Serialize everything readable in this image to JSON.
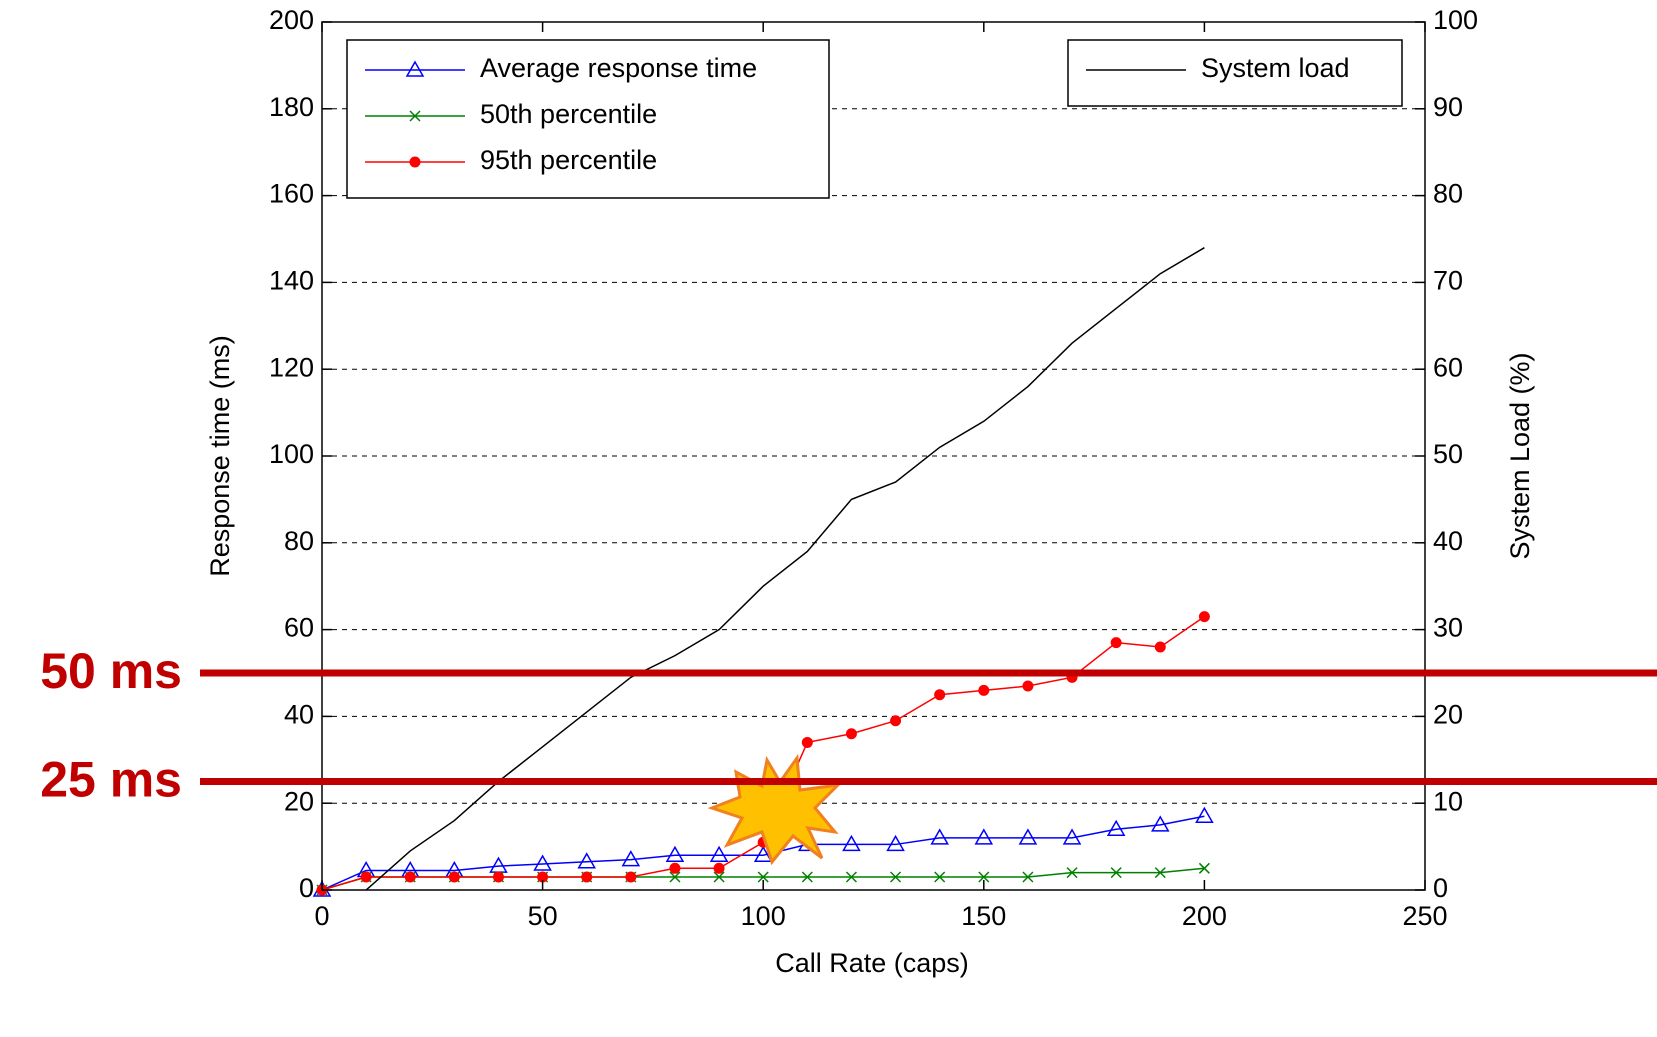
{
  "chart_data": {
    "type": "line",
    "x": [
      0,
      10,
      20,
      30,
      40,
      50,
      60,
      70,
      80,
      90,
      100,
      110,
      120,
      130,
      140,
      150,
      160,
      170,
      180,
      190,
      200
    ],
    "series": [
      {
        "name": "Average response time",
        "color": "#0000ff",
        "marker": "triangle",
        "values": [
          0,
          4.5,
          4.5,
          4.5,
          5.5,
          6,
          6.5,
          7,
          8,
          8,
          8,
          10.5,
          10.5,
          10.5,
          12,
          12,
          12,
          12,
          14,
          15,
          17
        ]
      },
      {
        "name": "50th percentile",
        "color": "#008000",
        "marker": "x",
        "values": [
          0,
          3,
          3,
          3,
          3,
          3,
          3,
          3,
          3,
          3,
          3,
          3,
          3,
          3,
          3,
          3,
          3,
          4,
          4,
          4,
          5
        ]
      },
      {
        "name": "95th percentile",
        "color": "#ff0000",
        "marker": "dot",
        "values": [
          0,
          3,
          3,
          3,
          3,
          3,
          3,
          3,
          5,
          5,
          11,
          34,
          36,
          39,
          45,
          46,
          47,
          49,
          57,
          56,
          63
        ]
      },
      {
        "name": "System load",
        "color": "#000000",
        "marker": "none",
        "axis": "y2",
        "values": [
          null,
          0,
          4.5,
          8,
          12.5,
          16.5,
          20.5,
          24.5,
          27,
          30,
          35,
          39,
          45,
          47,
          51,
          54,
          58,
          63,
          67,
          71,
          74
        ]
      }
    ],
    "xlabel": "Call Rate (caps)",
    "ylabel": "Response time (ms)",
    "y2label": "System Load (%)",
    "xlim": [
      0,
      250
    ],
    "xticks": [
      0,
      50,
      100,
      150,
      200,
      250
    ],
    "ylim": [
      0,
      200
    ],
    "yticks": [
      0,
      20,
      40,
      60,
      80,
      100,
      120,
      140,
      160,
      180,
      200
    ],
    "y2lim": [
      0,
      100
    ],
    "y2ticks": [
      0,
      10,
      20,
      30,
      40,
      50,
      60,
      70,
      80,
      90,
      100
    ],
    "grid": true,
    "legend": [
      "upper left",
      "upper right"
    ],
    "annotations": [
      {
        "label": "50 ms",
        "value": 50,
        "color": "#c00000"
      },
      {
        "label": "25 ms",
        "value": 25,
        "color": "#c00000"
      }
    ]
  }
}
